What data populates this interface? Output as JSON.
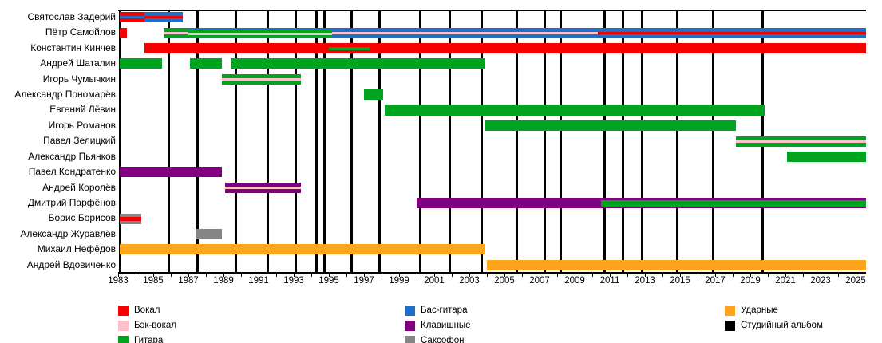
{
  "chart_data": {
    "type": "timeline",
    "axis": {
      "min": 1983,
      "max": 2026,
      "tick_labels": [
        "1983",
        "1985",
        "1987",
        "1989",
        "1991",
        "1993",
        "1995",
        "1997",
        "1999",
        "2001",
        "2003",
        "2005",
        "2007",
        "2009",
        "2011",
        "2013",
        "2015",
        "2017",
        "2019",
        "2021",
        "2023",
        "2025"
      ]
    },
    "albums": [
      1985.9,
      1987.5,
      1989.7,
      1991.5,
      1993.1,
      1994.3,
      1994.75,
      1996.3,
      1997.9,
      2000.2,
      2001.9,
      2003.7,
      2005.7,
      2007.3,
      2008.2,
      2010.7,
      2011.75,
      2012.85,
      2014.85,
      2016.9,
      2019.7
    ],
    "colors": {
      "vocal": "#f40000",
      "backing": "#ffc0cb",
      "guitar": "#00a41e",
      "bass": "#1d70c9",
      "keys": "#800080",
      "sax": "#858585",
      "drums": "#ffa51d",
      "album": "#000000"
    },
    "legend": {
      "columns": [
        [
          {
            "label": "Вокал",
            "color": "vocal"
          },
          {
            "label": "Бэк-вокал",
            "color": "backing"
          },
          {
            "label": "Гитара",
            "color": "guitar"
          }
        ],
        [
          {
            "label": "Бас-гитара",
            "color": "bass"
          },
          {
            "label": "Клавишные",
            "color": "keys"
          },
          {
            "label": "Саксофон",
            "color": "sax"
          }
        ],
        [
          {
            "label": "Ударные",
            "color": "drums"
          },
          {
            "label": "Студийный альбом",
            "color": "album"
          }
        ]
      ]
    },
    "members": [
      {
        "name": "Святослав Задерий",
        "segments": [
          {
            "start": 1983.1,
            "end": 1984.5,
            "layers": [
              [
                "vocal",
                5
              ],
              [
                "bass",
                3
              ],
              [
                "vocal",
                5
              ]
            ]
          },
          {
            "start": 1984.5,
            "end": 1986.7,
            "layers": [
              [
                "bass",
                5
              ],
              [
                "vocal",
                3
              ],
              [
                "bass",
                5
              ]
            ]
          }
        ]
      },
      {
        "name": "Пётр Самойлов",
        "segments": [
          {
            "start": 1983.1,
            "end": 1983.5,
            "layers": [
              [
                "vocal",
                13
              ]
            ]
          },
          {
            "start": 1985.6,
            "end": 1987.0,
            "layers": [
              [
                "guitar",
                5
              ],
              [
                "backing",
                3
              ],
              [
                "guitar",
                5
              ]
            ]
          },
          {
            "start": 1987.0,
            "end": 1995.2,
            "layers": [
              [
                "bass",
                3
              ],
              [
                "guitar",
                3
              ],
              [
                "backing",
                3
              ],
              [
                "guitar",
                4
              ]
            ]
          },
          {
            "start": 1995.2,
            "end": 2010.3,
            "layers": [
              [
                "bass",
                5
              ],
              [
                "backing",
                3
              ],
              [
                "bass",
                5
              ]
            ]
          },
          {
            "start": 2010.3,
            "end": 2025.6,
            "layers": [
              [
                "bass",
                5
              ],
              [
                "vocal",
                3
              ],
              [
                "bass",
                5
              ]
            ]
          }
        ]
      },
      {
        "name": "Константин Кинчев",
        "segments": [
          {
            "start": 1984.5,
            "end": 1995.0,
            "layers": [
              [
                "vocal",
                13
              ]
            ]
          },
          {
            "start": 1995.0,
            "end": 1997.3,
            "layers": [
              [
                "vocal",
                4.5
              ],
              [
                "guitar",
                4
              ],
              [
                "vocal",
                4.5
              ]
            ]
          },
          {
            "start": 1997.3,
            "end": 2025.6,
            "layers": [
              [
                "vocal",
                13
              ]
            ]
          }
        ]
      },
      {
        "name": "Андрей Шаталин",
        "segments": [
          {
            "start": 1983.1,
            "end": 1985.5,
            "layers": [
              [
                "guitar",
                13
              ]
            ]
          },
          {
            "start": 1987.1,
            "end": 1988.9,
            "layers": [
              [
                "guitar",
                13
              ]
            ]
          },
          {
            "start": 1989.4,
            "end": 2003.9,
            "layers": [
              [
                "guitar",
                13
              ]
            ]
          }
        ]
      },
      {
        "name": "Игорь Чумычкин",
        "segments": [
          {
            "start": 1988.9,
            "end": 1993.4,
            "layers": [
              [
                "guitar",
                5
              ],
              [
                "backing",
                3
              ],
              [
                "guitar",
                5
              ]
            ]
          }
        ]
      },
      {
        "name": "Александр Пономарёв",
        "segments": [
          {
            "start": 1997.0,
            "end": 1998.1,
            "layers": [
              [
                "guitar",
                13
              ]
            ]
          }
        ]
      },
      {
        "name": "Евгений Лёвин",
        "segments": [
          {
            "start": 1998.2,
            "end": 2019.8,
            "layers": [
              [
                "guitar",
                13
              ]
            ]
          }
        ]
      },
      {
        "name": "Игорь Романов",
        "segments": [
          {
            "start": 2003.9,
            "end": 2018.2,
            "layers": [
              [
                "guitar",
                13
              ]
            ]
          }
        ]
      },
      {
        "name": "Павел Зелицкий",
        "segments": [
          {
            "start": 2018.2,
            "end": 2025.6,
            "layers": [
              [
                "guitar",
                5
              ],
              [
                "backing",
                3
              ],
              [
                "guitar",
                5
              ]
            ]
          }
        ]
      },
      {
        "name": "Александр Пьянков",
        "segments": [
          {
            "start": 2021.1,
            "end": 2025.6,
            "layers": [
              [
                "guitar",
                13
              ]
            ]
          }
        ]
      },
      {
        "name": "Павел Кондратенко",
        "segments": [
          {
            "start": 1983.1,
            "end": 1988.9,
            "layers": [
              [
                "keys",
                13
              ]
            ]
          }
        ]
      },
      {
        "name": "Андрей Королёв",
        "segments": [
          {
            "start": 1989.1,
            "end": 1993.4,
            "layers": [
              [
                "keys",
                5
              ],
              [
                "backing",
                3
              ],
              [
                "keys",
                5
              ]
            ]
          }
        ]
      },
      {
        "name": "Дмитрий Парфёнов",
        "segments": [
          {
            "start": 2000.0,
            "end": 2010.5,
            "layers": [
              [
                "keys",
                13
              ]
            ]
          },
          {
            "start": 2010.5,
            "end": 2025.6,
            "layers": [
              [
                "keys",
                2.5
              ],
              [
                "guitar",
                8
              ],
              [
                "keys",
                2.5
              ]
            ]
          }
        ]
      },
      {
        "name": "Борис Борисов",
        "segments": [
          {
            "start": 1983.1,
            "end": 1984.3,
            "layers": [
              [
                "sax",
                4
              ],
              [
                "vocal",
                5
              ],
              [
                "sax",
                4
              ]
            ]
          }
        ]
      },
      {
        "name": "Александр Журавлёв",
        "segments": [
          {
            "start": 1987.4,
            "end": 1988.9,
            "layers": [
              [
                "sax",
                13
              ]
            ]
          }
        ]
      },
      {
        "name": "Михаил Нефёдов",
        "segments": [
          {
            "start": 1983.1,
            "end": 2003.9,
            "layers": [
              [
                "drums",
                13
              ]
            ]
          }
        ]
      },
      {
        "name": "Андрей Вдовиченко",
        "segments": [
          {
            "start": 2004.0,
            "end": 2025.6,
            "layers": [
              [
                "drums",
                13
              ]
            ]
          }
        ]
      }
    ]
  }
}
